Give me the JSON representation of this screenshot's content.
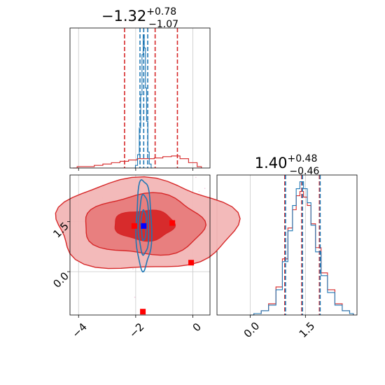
{
  "chart_data": {
    "type": "corner",
    "panels": [
      {
        "id": "marginal-x",
        "type": "histogram",
        "title_main": "−1.32",
        "title_sup": "+0.78",
        "title_sub": "−1.07",
        "xlim": [
          -4.3,
          0.6
        ],
        "series": [
          {
            "name": "",
            "color": "#d62728",
            "quantiles": [
              -2.39,
              -1.32,
              -0.54
            ],
            "histogram": {
              "x": [
                -4.2,
                -3.9,
                -3.6,
                -3.3,
                -3.0,
                -2.7,
                -2.4,
                -2.1,
                -1.8,
                -1.5,
                -1.2,
                -0.9,
                -0.6,
                -0.3,
                0.0,
                0.3
              ],
              "values": [
                0.0,
                0.01,
                0.01,
                0.02,
                0.03,
                0.04,
                0.05,
                0.06,
                0.07,
                0.07,
                0.075,
                0.085,
                0.09,
                0.07,
                0.04,
                0.01
              ]
            }
          },
          {
            "name": "",
            "color": "#1f77b4",
            "quantiles": [
              -1.85,
              -1.72,
              -1.58
            ],
            "histogram": {
              "x": [
                -2.05,
                -1.97,
                -1.9,
                -1.85,
                -1.8,
                -1.76,
                -1.72,
                -1.68,
                -1.64,
                -1.6,
                -1.55,
                -1.5,
                -1.42
              ],
              "values": [
                0.0,
                0.02,
                0.1,
                0.3,
                0.55,
                0.85,
                1.0,
                0.9,
                0.6,
                0.35,
                0.12,
                0.03,
                0.0
              ]
            }
          }
        ]
      },
      {
        "id": "marginal-y",
        "type": "histogram",
        "title_main": "1.40",
        "title_sup": "+0.48",
        "title_sub": "−0.46",
        "xlim": [
          -0.9,
          2.9
        ],
        "xticks": [
          0.0,
          1.5
        ],
        "xtick_labels": [
          "0.0",
          "1.5"
        ],
        "series": [
          {
            "name": "",
            "color": "#d62728",
            "quantiles": [
              0.94,
              1.4,
              1.88
            ],
            "histogram": {
              "x": [
                0.0,
                0.2,
                0.4,
                0.6,
                0.8,
                0.95,
                1.1,
                1.2,
                1.3,
                1.4,
                1.5,
                1.6,
                1.7,
                1.85,
                2.0,
                2.2,
                2.4,
                2.6,
                2.8
              ],
              "values": [
                0.0,
                0.01,
                0.03,
                0.08,
                0.2,
                0.4,
                0.62,
                0.75,
                0.85,
                0.88,
                0.84,
                0.78,
                0.65,
                0.48,
                0.3,
                0.18,
                0.08,
                0.03,
                0.01
              ]
            }
          },
          {
            "name": "",
            "color": "#1f77b4",
            "quantiles": [
              0.96,
              1.42,
              1.9
            ],
            "histogram": {
              "x": [
                0.0,
                0.2,
                0.4,
                0.6,
                0.8,
                0.95,
                1.1,
                1.2,
                1.3,
                1.4,
                1.5,
                1.6,
                1.7,
                1.85,
                2.0,
                2.2,
                2.4,
                2.6,
                2.8
              ],
              "values": [
                0.0,
                0.01,
                0.03,
                0.07,
                0.18,
                0.38,
                0.6,
                0.78,
                0.9,
                0.95,
                0.9,
                0.8,
                0.64,
                0.45,
                0.28,
                0.16,
                0.07,
                0.03,
                0.01
              ]
            }
          }
        ]
      },
      {
        "id": "joint",
        "type": "contour",
        "xlim": [
          -4.3,
          0.6
        ],
        "ylim": [
          -1.3,
          2.9
        ],
        "xticks": [
          -4,
          -2,
          0
        ],
        "xtick_labels": [
          "−4",
          "−2",
          "0"
        ],
        "yticks": [
          0.0,
          1.5
        ],
        "ytick_labels": [
          "0.0",
          "1.5"
        ],
        "series": [
          {
            "name": "",
            "color": "#d62728",
            "center": [
              -1.7,
              1.4
            ],
            "sigma": [
              1.05,
              0.45
            ],
            "levels": [
              0.39,
              0.86,
              0.99
            ]
          },
          {
            "name": "",
            "color": "#1f77b4",
            "center": [
              -1.72,
              1.4
            ],
            "sigma": [
              0.09,
              0.45
            ],
            "levels": [
              0.39,
              0.86,
              0.99
            ]
          }
        ],
        "markers": [
          {
            "x": -1.75,
            "y": -1.2,
            "color": "#ff0000"
          },
          {
            "x": -0.06,
            "y": 0.27,
            "color": "#ff0000"
          },
          {
            "x": -0.72,
            "y": 1.46,
            "color": "#ff0000"
          },
          {
            "x": -2.05,
            "y": 1.37,
            "color": "#ff0000"
          },
          {
            "x": -1.72,
            "y": 1.37,
            "color": "#0000ff"
          }
        ]
      }
    ]
  }
}
